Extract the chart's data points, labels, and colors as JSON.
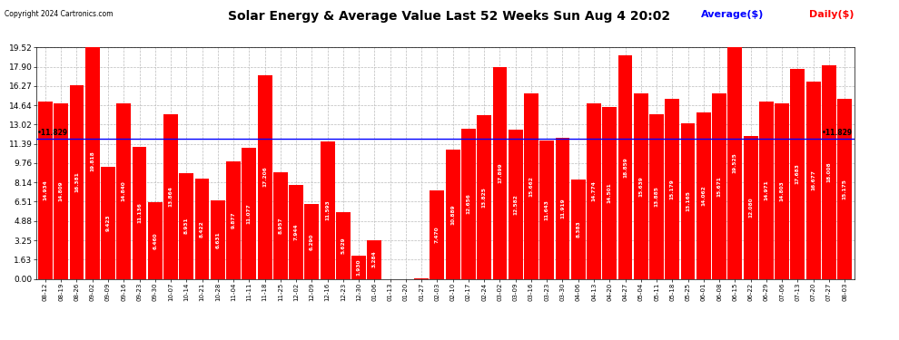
{
  "title": "Solar Energy & Average Value Last 52 Weeks Sun Aug 4 20:02",
  "copyright": "Copyright 2024 Cartronics.com",
  "average_label": "Average($)",
  "daily_label": "Daily($)",
  "average_value": 11.829,
  "bar_color": "#ff0000",
  "average_line_color": "#0000ff",
  "background_color": "#ffffff",
  "grid_color": "#bbbbbb",
  "ylim": [
    0,
    19.52
  ],
  "yticks": [
    0.0,
    1.63,
    3.25,
    4.88,
    6.51,
    8.14,
    9.76,
    11.39,
    13.02,
    14.64,
    16.27,
    17.9,
    19.52
  ],
  "categories": [
    "08-12",
    "08-19",
    "08-26",
    "09-02",
    "09-09",
    "09-16",
    "09-23",
    "09-30",
    "10-07",
    "10-14",
    "10-21",
    "10-28",
    "11-04",
    "11-11",
    "11-18",
    "11-25",
    "12-02",
    "12-09",
    "12-16",
    "12-23",
    "12-30",
    "01-06",
    "01-13",
    "01-20",
    "01-27",
    "02-03",
    "02-10",
    "02-17",
    "02-24",
    "03-02",
    "03-09",
    "03-16",
    "03-23",
    "03-30",
    "04-06",
    "04-13",
    "04-20",
    "04-27",
    "05-04",
    "05-11",
    "05-18",
    "05-25",
    "06-01",
    "06-08",
    "06-15",
    "06-22",
    "06-29",
    "07-06",
    "07-13",
    "07-20",
    "07-27",
    "08-03"
  ],
  "values": [
    14.934,
    14.809,
    16.381,
    19.818,
    9.423,
    14.84,
    11.136,
    6.46,
    13.864,
    8.931,
    8.422,
    6.631,
    9.877,
    11.077,
    17.206,
    8.957,
    7.944,
    6.29,
    11.593,
    5.629,
    1.93,
    3.284,
    0.0,
    0.0,
    0.013,
    7.47,
    10.889,
    12.656,
    13.825,
    17.899,
    12.582,
    15.662,
    11.643,
    11.919,
    8.383,
    14.774,
    14.501,
    18.859,
    15.639,
    13.885,
    15.179,
    13.165,
    14.062,
    15.671,
    19.525,
    12.08,
    14.971,
    14.803,
    17.683,
    16.677,
    18.008,
    15.175
  ]
}
